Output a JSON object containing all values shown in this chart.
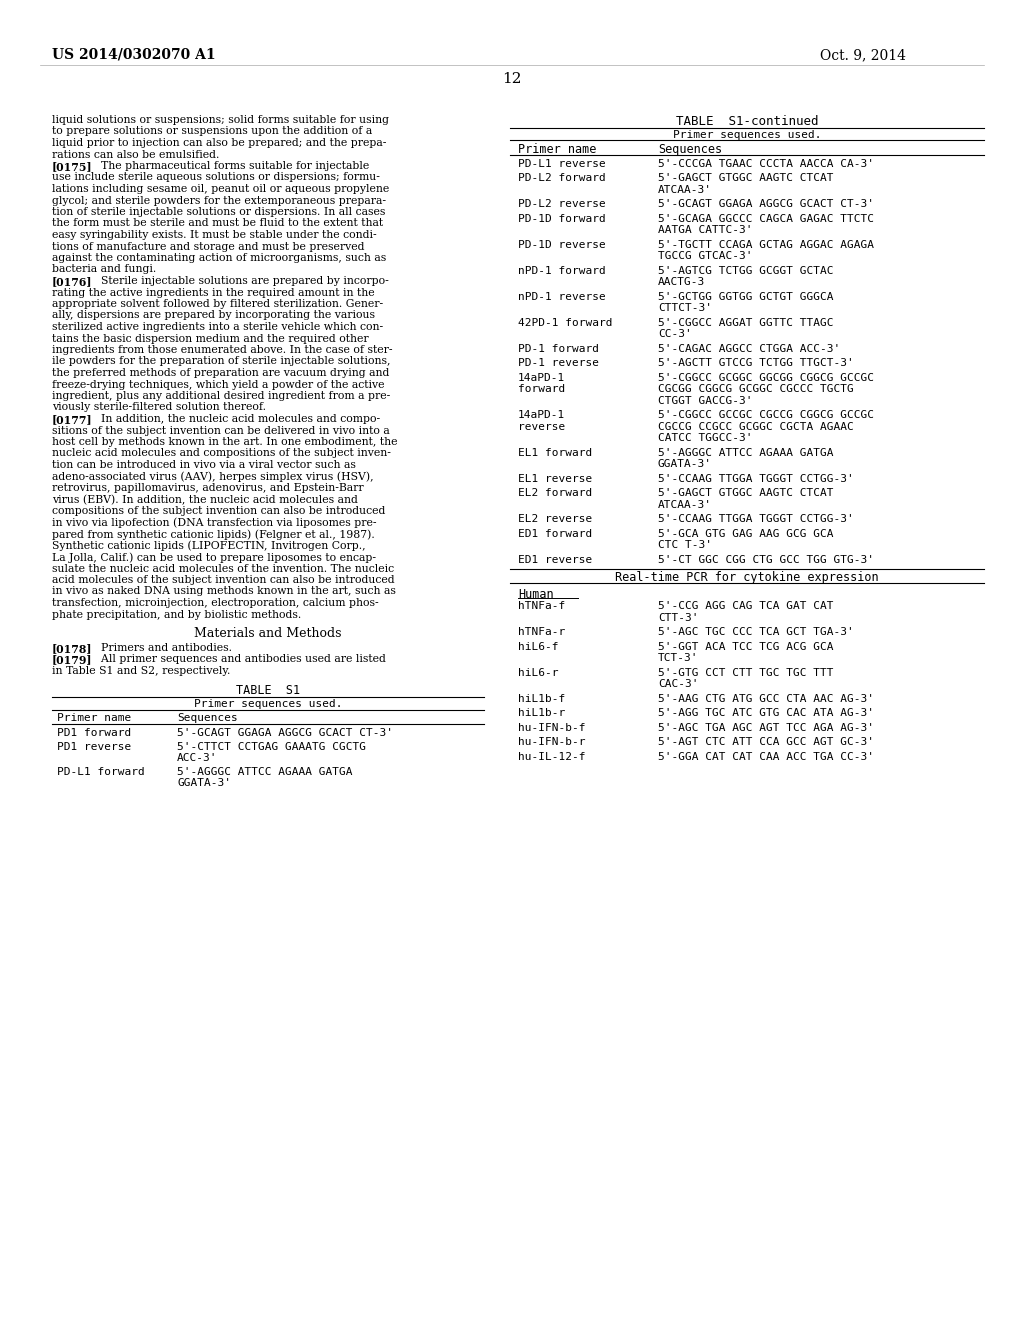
{
  "patent_number": "US 2014/0302070 A1",
  "patent_date": "Oct. 9, 2014",
  "page_number": "12",
  "background_color": "#ffffff",
  "left_col_lines": [
    "liquid solutions or suspensions; solid forms suitable for using",
    "to prepare solutions or suspensions upon the addition of a",
    "liquid prior to injection can also be prepared; and the prepa-",
    "rations can also be emulsified.",
    "[0175]    The pharmaceutical forms suitable for injectable",
    "use include sterile aqueous solutions or dispersions; formu-",
    "lations including sesame oil, peanut oil or aqueous propylene",
    "glycol; and sterile powders for the extemporaneous prepara-",
    "tion of sterile injectable solutions or dispersions. In all cases",
    "the form must be sterile and must be fluid to the extent that",
    "easy syringability exists. It must be stable under the condi-",
    "tions of manufacture and storage and must be preserved",
    "against the contaminating action of microorganisms, such as",
    "bacteria and fungi.",
    "[0176]    Sterile injectable solutions are prepared by incorpo-",
    "rating the active ingredients in the required amount in the",
    "appropriate solvent followed by filtered sterilization. Gener-",
    "ally, dispersions are prepared by incorporating the various",
    "sterilized active ingredients into a sterile vehicle which con-",
    "tains the basic dispersion medium and the required other",
    "ingredients from those enumerated above. In the case of ster-",
    "ile powders for the preparation of sterile injectable solutions,",
    "the preferred methods of preparation are vacuum drying and",
    "freeze-drying techniques, which yield a powder of the active",
    "ingredient, plus any additional desired ingredient from a pre-",
    "viously sterile-filtered solution thereof.",
    "[0177]    In addition, the nucleic acid molecules and compo-",
    "sitions of the subject invention can be delivered in vivo into a",
    "host cell by methods known in the art. In one embodiment, the",
    "nucleic acid molecules and compositions of the subject inven-",
    "tion can be introduced in vivo via a viral vector such as",
    "adeno-associated virus (AAV), herpes simplex virus (HSV),",
    "retrovirus, papillomavirus, adenovirus, and Epstein-Barr",
    "virus (EBV). In addition, the nucleic acid molecules and",
    "compositions of the subject invention can also be introduced",
    "in vivo via lipofection (DNA transfection via liposomes pre-",
    "pared from synthetic cationic lipids) (Felgner et al., 1987).",
    "Synthetic cationic lipids (LIPOFECTIN, Invitrogen Corp.,",
    "La Jolla, Calif.) can be used to prepare liposomes to encap-",
    "sulate the nucleic acid molecules of the invention. The nucleic",
    "acid molecules of the subject invention can also be introduced",
    "in vivo as naked DNA using methods known in the art, such as",
    "transfection, microinjection, electroporation, calcium phos-",
    "phate precipitation, and by biolistic methods."
  ],
  "materials_heading": "Materials and Methods",
  "para178": "[0178]    Primers and antibodies.",
  "para179": "[0179]    All primer sequences and antibodies used are listed",
  "para179b": "in Table S1 and S2, respectively.",
  "table_s1_title": "TABLE  S1",
  "table_s1_subtitle": "Primer sequences used.",
  "left_table_rows": [
    [
      "PD1 forward",
      "5'-GCAGT GGAGA AGGCG GCACT CT-3'",
      null
    ],
    [
      "PD1 reverse",
      "5'-CTTCT CCTGAG GAAATG CGCTG",
      "ACC-3'"
    ],
    [
      "PD-L1 forward",
      "5'-AGGGC ATTCC AGAAA GATGA",
      "GGATA-3'"
    ]
  ],
  "right_table_title": "TABLE  S1-continued",
  "right_table_subtitle": "Primer sequences used.",
  "right_col1_header": "Primer name",
  "right_col2_header": "Sequences",
  "table_rows": [
    [
      "PD-L1 reverse",
      "5'-CCCGA TGAAC CCCTA AACCA CA-3'",
      null
    ],
    [
      "PD-L2 forward",
      "5'-GAGCT GTGGC AAGTC CTCAT",
      "ATCAA-3'"
    ],
    [
      "PD-L2 reverse",
      "5'-GCAGT GGAGA AGGCG GCACT CT-3'",
      null
    ],
    [
      "PD-1D forward",
      "5'-GCAGA GGCCC CAGCA GAGAC TTCTC",
      "AATGA CATTC-3'"
    ],
    [
      "PD-1D reverse",
      "5'-TGCTT CCAGA GCTAG AGGAC AGAGA",
      "TGCCG GTCAC-3'"
    ],
    [
      "nPD-1 forward",
      "5'-AGTCG TCTGG GCGGT GCTAC",
      "AACTG-3"
    ],
    [
      "nPD-1 reverse",
      "5'-GCTGG GGTGG GCTGT GGGCA",
      "CTTCT-3'"
    ],
    [
      "42PD-1 forward",
      "5'-CGGCC AGGAT GGTTC TTAGC",
      "CC-3'"
    ],
    [
      "PD-1 forward",
      "5'-CAGAC AGGCC CTGGA ACC-3'",
      null
    ],
    [
      "PD-1 reverse",
      "5'-AGCTT GTCCG TCTGG TTGCT-3'",
      null
    ],
    [
      "14aPD-1\nforward",
      "5'-CGGCC GCGGC GGCGG CGGCG GCCGC",
      "CGCGG CGGCG GCGGC CGCCC TGCTG\nCTGGT GACCG-3'"
    ],
    [
      "14aPD-1\nreverse",
      "5'-CGGCC GCCGC CGCCG CGGCG GCCGC",
      "CGCCG CCGCC GCGGC CGCTA AGAAC\nCATCC TGGCC-3'"
    ],
    [
      "EL1 forward",
      "5'-AGGGC ATTCC AGAAA GATGA",
      "GGATA-3'"
    ],
    [
      "EL1 reverse",
      "5'-CCAAG TTGGA TGGGT CCTGG-3'",
      null
    ],
    [
      "EL2 forward",
      "5'-GAGCT GTGGC AAGTC CTCAT",
      "ATCAA-3'"
    ],
    [
      "EL2 reverse",
      "5'-CCAAG TTGGA TGGGT CCTGG-3'",
      null
    ],
    [
      "ED1 forward",
      "5'-GCA GTG GAG AAG GCG GCA",
      "CTC T-3'"
    ],
    [
      "ED1 reverse",
      "5'-CT GGC CGG CTG GCC TGG GTG-3'",
      null
    ]
  ],
  "section_break_text": "Real-time PCR for cytokine expression",
  "human_label": "Human",
  "human_rows": [
    [
      "hTNFa-f",
      "5'-CCG AGG CAG TCA GAT CAT",
      "CTT-3'"
    ],
    [
      "hTNFa-r",
      "5'-AGC TGC CCC TCA GCT TGA-3'",
      null
    ],
    [
      "hiL6-f",
      "5'-GGT ACA TCC TCG ACG GCA",
      "TCT-3'"
    ],
    [
      "hiL6-r",
      "5'-GTG CCT CTT TGC TGC TTT",
      "CAC-3'"
    ],
    [
      "hiL1b-f",
      "5'-AAG CTG ATG GCC CTA AAC AG-3'",
      null
    ],
    [
      "hiL1b-r",
      "5'-AGG TGC ATC GTG CAC ATA AG-3'",
      null
    ],
    [
      "hu-IFN-b-f",
      "5'-AGC TGA AGC AGT TCC AGA AG-3'",
      null
    ],
    [
      "hu-IFN-b-r",
      "5'-AGT CTC ATT CCA GCC AGT GC-3'",
      null
    ],
    [
      "hu-IL-12-f",
      "5'-GGA CAT CAT CAA ACC TGA CC-3'",
      null
    ]
  ]
}
